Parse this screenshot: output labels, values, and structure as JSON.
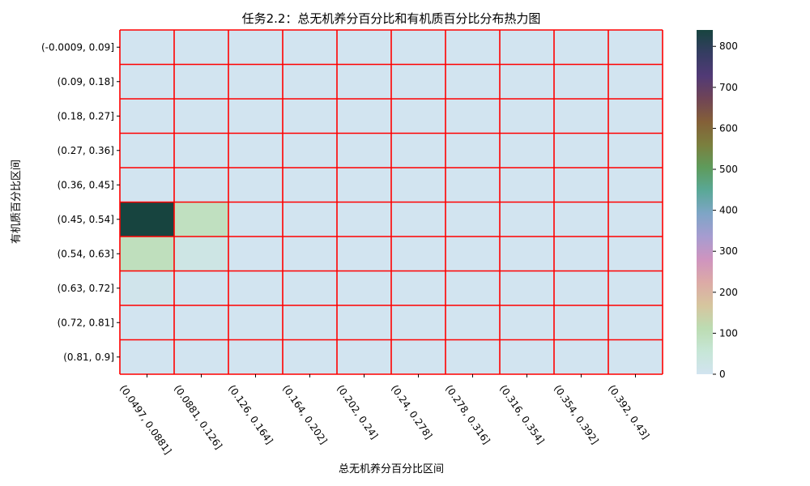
{
  "chart_data": {
    "type": "heatmap",
    "title": "任务2.2：总无机养分百分比和有机质百分比分布热力图",
    "xlabel": "总无机养分百分比区间",
    "ylabel": "有机质百分比区间",
    "x_categories": [
      "(0.0497, 0.0881]",
      "(0.0881, 0.126]",
      "(0.126, 0.164]",
      "(0.164, 0.202]",
      "(0.202, 0.24]",
      "(0.24, 0.278]",
      "(0.278, 0.316]",
      "(0.316, 0.354]",
      "(0.354, 0.392]",
      "(0.392, 0.43]"
    ],
    "y_categories": [
      "(-0.0009, 0.09]",
      "(0.09, 0.18]",
      "(0.18, 0.27]",
      "(0.27, 0.36]",
      "(0.36, 0.45]",
      "(0.45, 0.54]",
      "(0.54, 0.63]",
      "(0.63, 0.72]",
      "(0.72, 0.81]",
      "(0.81, 0.9]"
    ],
    "values": [
      [
        0,
        0,
        0,
        0,
        0,
        0,
        0,
        0,
        0,
        0
      ],
      [
        0,
        0,
        0,
        0,
        0,
        0,
        0,
        0,
        0,
        0
      ],
      [
        0,
        0,
        0,
        0,
        0,
        0,
        0,
        0,
        0,
        0
      ],
      [
        0,
        0,
        0,
        0,
        0,
        0,
        0,
        0,
        0,
        0
      ],
      [
        0,
        0,
        0,
        0,
        0,
        0,
        0,
        0,
        0,
        0
      ],
      [
        840,
        90,
        0,
        0,
        0,
        0,
        0,
        0,
        0,
        0
      ],
      [
        95,
        25,
        0,
        0,
        0,
        0,
        0,
        0,
        0,
        0
      ],
      [
        10,
        0,
        0,
        0,
        0,
        0,
        0,
        0,
        0,
        0
      ],
      [
        0,
        0,
        0,
        0,
        0,
        0,
        0,
        0,
        0,
        0
      ],
      [
        0,
        0,
        0,
        0,
        0,
        0,
        0,
        0,
        0,
        0
      ]
    ],
    "colorbar": {
      "min": 0,
      "max": 840,
      "ticks": [
        0,
        100,
        200,
        300,
        400,
        500,
        600,
        700,
        800
      ]
    },
    "grid_line_color": "#ff0000",
    "colormap": [
      "#d2e4f0",
      "#c6e6d6",
      "#bcdcb2",
      "#d6c59e",
      "#dcaaa6",
      "#cf94bf",
      "#a69cd0",
      "#7ea5c6",
      "#5aa897",
      "#5e9b5c",
      "#7b7f3e",
      "#846038",
      "#704456",
      "#513a76",
      "#353d62",
      "#17443f"
    ]
  }
}
